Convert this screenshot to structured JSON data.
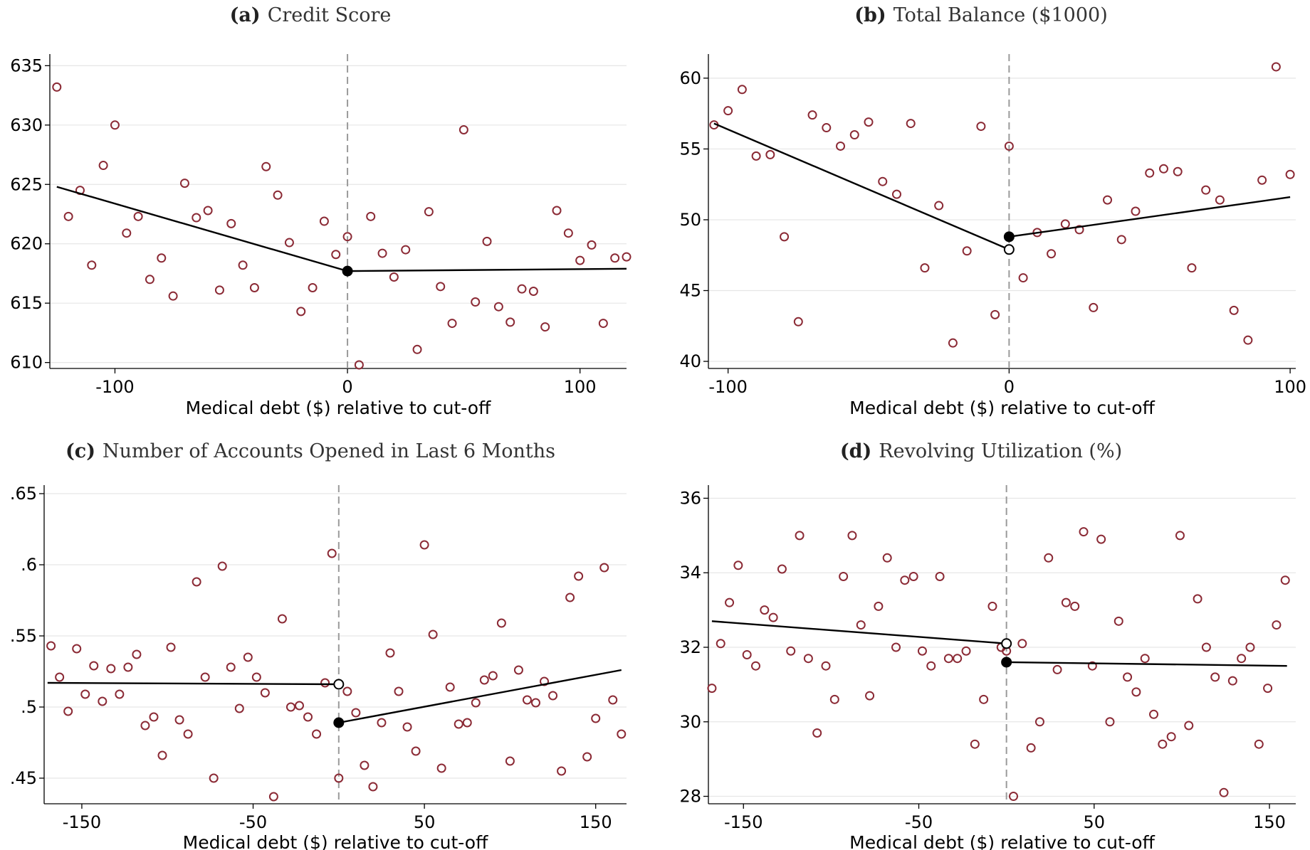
{
  "colors": {
    "points": "#8b2a35",
    "fit": "#000000",
    "cutoff": "#9a9a9a",
    "grid": "#e6e6e6"
  },
  "chart_data": [
    {
      "type": "scatter",
      "panel_letter": "(a)",
      "title": "Credit Score",
      "xlabel": "Medical debt ($) relative to cut-off",
      "ylabel": "",
      "xlim": [
        -128,
        120
      ],
      "ylim": [
        609.5,
        635.5
      ],
      "xticks": [
        -100,
        0,
        100
      ],
      "xtick_labels": [
        "-100",
        "0",
        "100"
      ],
      "yticks": [
        610,
        615,
        620,
        625,
        630,
        635
      ],
      "ytick_labels": [
        "610",
        "615",
        "620",
        "625",
        "630",
        "635"
      ],
      "cutoff": 0,
      "grid": "horizontal",
      "points": [
        [
          -125,
          633.2
        ],
        [
          -120,
          622.3
        ],
        [
          -115,
          624.5
        ],
        [
          -110,
          618.2
        ],
        [
          -105,
          626.6
        ],
        [
          -100,
          630.0
        ],
        [
          -95,
          620.9
        ],
        [
          -90,
          622.3
        ],
        [
          -85,
          617.0
        ],
        [
          -80,
          618.8
        ],
        [
          -75,
          615.6
        ],
        [
          -70,
          625.1
        ],
        [
          -65,
          622.2
        ],
        [
          -60,
          622.8
        ],
        [
          -55,
          616.1
        ],
        [
          -50,
          621.7
        ],
        [
          -45,
          618.2
        ],
        [
          -40,
          616.3
        ],
        [
          -35,
          626.5
        ],
        [
          -30,
          624.1
        ],
        [
          -25,
          620.1
        ],
        [
          -20,
          614.3
        ],
        [
          -15,
          616.3
        ],
        [
          -10,
          621.9
        ],
        [
          -5,
          619.1
        ],
        [
          0,
          620.6
        ],
        [
          5,
          609.8
        ],
        [
          10,
          622.3
        ],
        [
          15,
          619.2
        ],
        [
          20,
          617.2
        ],
        [
          25,
          619.5
        ],
        [
          30,
          611.1
        ],
        [
          35,
          622.7
        ],
        [
          40,
          616.4
        ],
        [
          45,
          613.3
        ],
        [
          50,
          629.6
        ],
        [
          55,
          615.1
        ],
        [
          60,
          620.2
        ],
        [
          65,
          614.7
        ],
        [
          70,
          613.4
        ],
        [
          75,
          616.2
        ],
        [
          80,
          616.0
        ],
        [
          85,
          613.0
        ],
        [
          90,
          622.8
        ],
        [
          95,
          620.9
        ],
        [
          100,
          618.6
        ],
        [
          105,
          619.9
        ],
        [
          110,
          613.3
        ],
        [
          115,
          618.8
        ],
        [
          120,
          618.9
        ]
      ],
      "fit_left": [
        [
          -125,
          624.8
        ],
        [
          0,
          617.7
        ]
      ],
      "fit_right": [
        [
          0,
          617.7
        ],
        [
          120,
          617.9
        ]
      ],
      "cutoff_markers": [
        {
          "x": 0,
          "y": 617.7,
          "filled": true
        }
      ]
    },
    {
      "type": "scatter",
      "panel_letter": "(b)",
      "title": "Total Balance ($1000)",
      "xlabel": "Medical debt ($) relative to cut-off",
      "ylabel": "",
      "xlim": [
        -107,
        102
      ],
      "ylim": [
        39.5,
        61.3
      ],
      "xticks": [
        -100,
        0,
        100
      ],
      "xtick_labels": [
        "-100",
        "0",
        "100"
      ],
      "yticks": [
        40,
        45,
        50,
        55,
        60
      ],
      "ytick_labels": [
        "40",
        "45",
        "50",
        "55",
        "60"
      ],
      "cutoff": 0,
      "grid": "horizontal",
      "points": [
        [
          -105,
          56.7
        ],
        [
          -100,
          57.7
        ],
        [
          -95,
          59.2
        ],
        [
          -90,
          54.5
        ],
        [
          -85,
          54.6
        ],
        [
          -80,
          48.8
        ],
        [
          -75,
          42.8
        ],
        [
          -70,
          57.4
        ],
        [
          -65,
          56.5
        ],
        [
          -60,
          55.2
        ],
        [
          -55,
          56.0
        ],
        [
          -50,
          56.9
        ],
        [
          -45,
          52.7
        ],
        [
          -40,
          51.8
        ],
        [
          -35,
          56.8
        ],
        [
          -30,
          46.6
        ],
        [
          -25,
          51.0
        ],
        [
          -20,
          41.3
        ],
        [
          -15,
          47.8
        ],
        [
          -10,
          56.6
        ],
        [
          -5,
          43.3
        ],
        [
          0,
          55.2
        ],
        [
          5,
          45.9
        ],
        [
          10,
          49.1
        ],
        [
          15,
          47.6
        ],
        [
          20,
          49.7
        ],
        [
          25,
          49.3
        ],
        [
          30,
          43.8
        ],
        [
          35,
          51.4
        ],
        [
          40,
          48.6
        ],
        [
          45,
          50.6
        ],
        [
          50,
          53.3
        ],
        [
          55,
          53.6
        ],
        [
          60,
          53.4
        ],
        [
          65,
          46.6
        ],
        [
          70,
          52.1
        ],
        [
          75,
          51.4
        ],
        [
          80,
          43.6
        ],
        [
          85,
          41.5
        ],
        [
          90,
          52.8
        ],
        [
          95,
          60.8
        ],
        [
          100,
          53.2
        ]
      ],
      "fit_left": [
        [
          -105,
          56.8
        ],
        [
          0,
          47.9
        ]
      ],
      "fit_right": [
        [
          0,
          48.8
        ],
        [
          100,
          51.6
        ]
      ],
      "cutoff_markers": [
        {
          "x": 0,
          "y": 47.9,
          "filled": false
        },
        {
          "x": 0,
          "y": 48.8,
          "filled": true
        }
      ]
    },
    {
      "type": "scatter",
      "panel_letter": "(c)",
      "title": "Number of Accounts Opened in Last 6 Months",
      "xlabel": "Medical debt ($) relative to cut-off",
      "ylabel": "",
      "xlim": [
        -172,
        168
      ],
      "ylim": [
        0.432,
        0.652
      ],
      "xticks": [
        -150,
        -50,
        50,
        150
      ],
      "xtick_labels": [
        "-150",
        "-50",
        "50",
        "150"
      ],
      "yticks": [
        0.45,
        0.5,
        0.55,
        0.6,
        0.65
      ],
      "ytick_labels": [
        ".45",
        ".5",
        ".55",
        ".6",
        ".65"
      ],
      "cutoff": 0,
      "grid": "horizontal",
      "points": [
        [
          -168,
          0.543
        ],
        [
          -163,
          0.521
        ],
        [
          -158,
          0.497
        ],
        [
          -153,
          0.541
        ],
        [
          -148,
          0.509
        ],
        [
          -143,
          0.529
        ],
        [
          -138,
          0.504
        ],
        [
          -133,
          0.527
        ],
        [
          -128,
          0.509
        ],
        [
          -123,
          0.528
        ],
        [
          -118,
          0.537
        ],
        [
          -113,
          0.487
        ],
        [
          -108,
          0.493
        ],
        [
          -103,
          0.466
        ],
        [
          -98,
          0.542
        ],
        [
          -93,
          0.491
        ],
        [
          -88,
          0.481
        ],
        [
          -83,
          0.588
        ],
        [
          -78,
          0.521
        ],
        [
          -73,
          0.45
        ],
        [
          -68,
          0.599
        ],
        [
          -63,
          0.528
        ],
        [
          -58,
          0.499
        ],
        [
          -53,
          0.535
        ],
        [
          -48,
          0.521
        ],
        [
          -43,
          0.51
        ],
        [
          -38,
          0.437
        ],
        [
          -33,
          0.562
        ],
        [
          -28,
          0.5
        ],
        [
          -23,
          0.501
        ],
        [
          -18,
          0.493
        ],
        [
          -13,
          0.481
        ],
        [
          -8,
          0.517
        ],
        [
          -4,
          0.608
        ],
        [
          0,
          0.45
        ],
        [
          5,
          0.511
        ],
        [
          10,
          0.496
        ],
        [
          15,
          0.459
        ],
        [
          20,
          0.444
        ],
        [
          25,
          0.489
        ],
        [
          30,
          0.538
        ],
        [
          35,
          0.511
        ],
        [
          40,
          0.486
        ],
        [
          45,
          0.469
        ],
        [
          50,
          0.614
        ],
        [
          55,
          0.551
        ],
        [
          60,
          0.457
        ],
        [
          65,
          0.514
        ],
        [
          70,
          0.488
        ],
        [
          75,
          0.489
        ],
        [
          80,
          0.503
        ],
        [
          85,
          0.519
        ],
        [
          90,
          0.522
        ],
        [
          95,
          0.559
        ],
        [
          100,
          0.462
        ],
        [
          105,
          0.526
        ],
        [
          110,
          0.505
        ],
        [
          115,
          0.503
        ],
        [
          120,
          0.518
        ],
        [
          125,
          0.508
        ],
        [
          130,
          0.455
        ],
        [
          135,
          0.577
        ],
        [
          140,
          0.592
        ],
        [
          145,
          0.465
        ],
        [
          150,
          0.492
        ],
        [
          155,
          0.598
        ],
        [
          160,
          0.505
        ],
        [
          165,
          0.481
        ]
      ],
      "fit_left": [
        [
          -170,
          0.517
        ],
        [
          0,
          0.516
        ]
      ],
      "fit_right": [
        [
          0,
          0.489
        ],
        [
          165,
          0.526
        ]
      ],
      "cutoff_markers": [
        {
          "x": 0,
          "y": 0.516,
          "filled": false
        },
        {
          "x": 0,
          "y": 0.489,
          "filled": true
        }
      ]
    },
    {
      "type": "scatter",
      "panel_letter": "(d)",
      "title": "Revolving Utilization (%)",
      "xlabel": "Medical debt ($) relative to cut-off",
      "ylabel": "",
      "xlim": [
        -170,
        165
      ],
      "ylim": [
        27.8,
        36.2
      ],
      "xticks": [
        -150,
        -50,
        50,
        150
      ],
      "xtick_labels": [
        "-150",
        "-50",
        "50",
        "150"
      ],
      "yticks": [
        28,
        30,
        32,
        34,
        36
      ],
      "ytick_labels": [
        "28",
        "30",
        "32",
        "34",
        "36"
      ],
      "cutoff": 0,
      "grid": "horizontal",
      "points": [
        [
          -168,
          30.9
        ],
        [
          -163,
          32.1
        ],
        [
          -158,
          33.2
        ],
        [
          -153,
          34.2
        ],
        [
          -148,
          31.8
        ],
        [
          -143,
          31.5
        ],
        [
          -138,
          33.0
        ],
        [
          -133,
          32.8
        ],
        [
          -128,
          34.1
        ],
        [
          -123,
          31.9
        ],
        [
          -118,
          35.0
        ],
        [
          -113,
          31.7
        ],
        [
          -108,
          29.7
        ],
        [
          -103,
          31.5
        ],
        [
          -98,
          30.6
        ],
        [
          -93,
          33.9
        ],
        [
          -88,
          35.0
        ],
        [
          -83,
          32.6
        ],
        [
          -78,
          30.7
        ],
        [
          -73,
          33.1
        ],
        [
          -68,
          34.4
        ],
        [
          -63,
          32.0
        ],
        [
          -58,
          33.8
        ],
        [
          -53,
          33.9
        ],
        [
          -48,
          31.9
        ],
        [
          -43,
          31.5
        ],
        [
          -38,
          33.9
        ],
        [
          -33,
          31.7
        ],
        [
          -28,
          31.7
        ],
        [
          -23,
          31.9
        ],
        [
          -18,
          29.4
        ],
        [
          -13,
          30.6
        ],
        [
          -8,
          33.1
        ],
        [
          -3,
          32.0
        ],
        [
          0,
          31.9
        ],
        [
          4,
          28.0
        ],
        [
          9,
          32.1
        ],
        [
          14,
          29.3
        ],
        [
          19,
          30.0
        ],
        [
          24,
          34.4
        ],
        [
          29,
          31.4
        ],
        [
          34,
          33.2
        ],
        [
          39,
          33.1
        ],
        [
          44,
          35.1
        ],
        [
          49,
          31.5
        ],
        [
          54,
          34.9
        ],
        [
          59,
          30.0
        ],
        [
          64,
          32.7
        ],
        [
          69,
          31.2
        ],
        [
          74,
          30.8
        ],
        [
          79,
          31.7
        ],
        [
          84,
          30.2
        ],
        [
          89,
          29.4
        ],
        [
          94,
          29.6
        ],
        [
          99,
          35.0
        ],
        [
          104,
          29.9
        ],
        [
          109,
          33.3
        ],
        [
          114,
          32.0
        ],
        [
          119,
          31.2
        ],
        [
          124,
          28.1
        ],
        [
          129,
          31.1
        ],
        [
          134,
          31.7
        ],
        [
          139,
          32.0
        ],
        [
          144,
          29.4
        ],
        [
          149,
          30.9
        ],
        [
          154,
          32.6
        ],
        [
          159,
          33.8
        ]
      ],
      "fit_left": [
        [
          -168,
          32.7
        ],
        [
          0,
          32.1
        ]
      ],
      "fit_right": [
        [
          0,
          31.6
        ],
        [
          160,
          31.5
        ]
      ],
      "cutoff_markers": [
        {
          "x": 0,
          "y": 32.1,
          "filled": false
        },
        {
          "x": 0,
          "y": 31.6,
          "filled": true
        }
      ]
    }
  ]
}
